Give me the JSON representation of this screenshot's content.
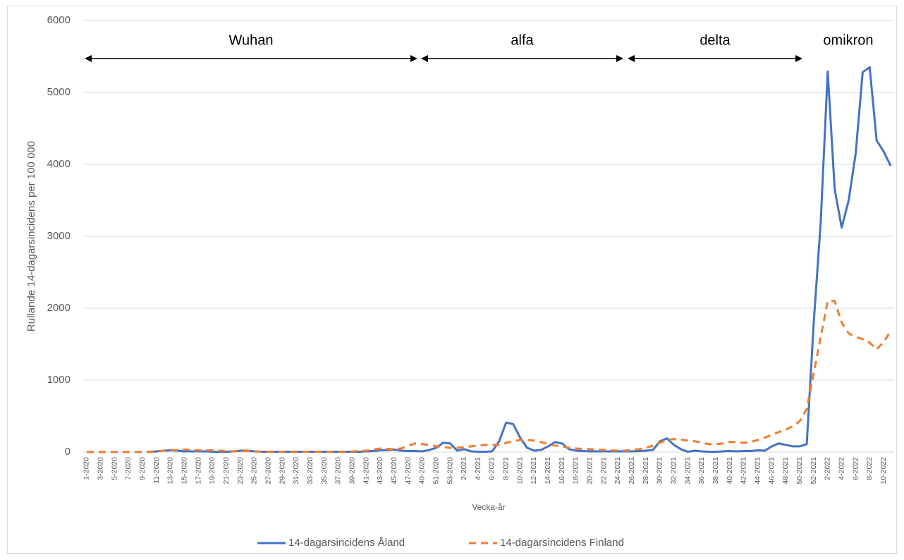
{
  "chart_data": {
    "type": "line",
    "y_label": "Rullande 14-dagarsincidens per 100 000",
    "x_label": "Vecka-år",
    "annotations": [
      "Wuhan",
      "alfa",
      "delta",
      "omikron"
    ],
    "ylim": [
      0,
      6000
    ],
    "yticks": [
      0,
      1000,
      2000,
      3000,
      4000,
      5000,
      6000
    ],
    "grid": true,
    "legend": "bottom",
    "categories": [
      "1-2020",
      null,
      "3-2020",
      null,
      "5-2020",
      null,
      "7-2020",
      null,
      "9-2020",
      null,
      "11-2020",
      null,
      "13-2020",
      null,
      "15-2020",
      null,
      "17-2020",
      null,
      "19-2020",
      null,
      "21-2020",
      null,
      "23-2020",
      null,
      "25-2020",
      null,
      "27-2020",
      null,
      "29-2020",
      null,
      "31-2020",
      null,
      "33-2020",
      null,
      "35-2020",
      null,
      "37-2020",
      null,
      "39-2020",
      null,
      "41-2020",
      null,
      "43-2020",
      null,
      "45-2020",
      null,
      "47-2020",
      null,
      "49-2020",
      null,
      "51-2020",
      null,
      "53-2020",
      null,
      "2-2021",
      null,
      "4-2021",
      null,
      "6-2021",
      null,
      "8-2021",
      null,
      "10-2021",
      null,
      "12-2021",
      null,
      "14-2021",
      null,
      "16-2021",
      null,
      "18-2021",
      null,
      "20-2021",
      null,
      "22-2021",
      null,
      "24-2021",
      null,
      "26-2021",
      null,
      "28-2021",
      null,
      "30-2021",
      null,
      "32-2021",
      null,
      "34-2021",
      null,
      "36-2021",
      null,
      "38-2021",
      null,
      "40-2021",
      null,
      "42-2021",
      null,
      "44-2021",
      null,
      "46-2021",
      null,
      "48-2021",
      null,
      "50-2021",
      null,
      "52-2021",
      null,
      "2-2022",
      null,
      "4-2022",
      null,
      "6-2022",
      null,
      "8-2022",
      null,
      "10-2022",
      null
    ],
    "series": [
      {
        "name": "14-dagarsincidens Åland",
        "color": "#4472c4",
        "line_style": "solid",
        "values": [
          null,
          null,
          null,
          null,
          null,
          null,
          null,
          null,
          null,
          5,
          10,
          20,
          25,
          20,
          10,
          10,
          10,
          10,
          5,
          5,
          5,
          10,
          20,
          20,
          10,
          5,
          5,
          5,
          5,
          5,
          5,
          5,
          5,
          5,
          5,
          5,
          5,
          5,
          5,
          5,
          10,
          15,
          25,
          30,
          35,
          20,
          15,
          15,
          10,
          30,
          60,
          130,
          120,
          20,
          40,
          10,
          5,
          5,
          10,
          150,
          410,
          390,
          200,
          60,
          20,
          30,
          80,
          140,
          120,
          40,
          20,
          15,
          10,
          10,
          10,
          10,
          10,
          10,
          10,
          15,
          20,
          30,
          150,
          190,
          100,
          40,
          5,
          20,
          10,
          5,
          5,
          10,
          15,
          10,
          15,
          15,
          25,
          20,
          80,
          120,
          100,
          80,
          80,
          110,
          1800,
          3200,
          5290,
          3650,
          3120,
          3500,
          4150,
          5280,
          5350,
          4330,
          4180,
          3980
        ]
      },
      {
        "name": "14-dagarsincidens Finland",
        "color": "#ed7d31",
        "line_style": "dashed",
        "values": [
          0,
          0,
          0,
          0,
          0,
          0,
          0,
          0,
          0,
          5,
          10,
          20,
          30,
          30,
          35,
          30,
          25,
          25,
          25,
          20,
          15,
          10,
          15,
          15,
          10,
          5,
          5,
          5,
          5,
          5,
          5,
          5,
          5,
          5,
          5,
          5,
          5,
          5,
          10,
          15,
          20,
          35,
          50,
          45,
          40,
          50,
          90,
          120,
          110,
          100,
          80,
          70,
          60,
          60,
          70,
          80,
          90,
          100,
          100,
          100,
          130,
          150,
          170,
          170,
          160,
          140,
          110,
          90,
          80,
          60,
          50,
          45,
          40,
          35,
          30,
          25,
          20,
          20,
          30,
          40,
          60,
          90,
          130,
          170,
          180,
          175,
          160,
          150,
          130,
          110,
          110,
          120,
          140,
          140,
          130,
          140,
          170,
          200,
          240,
          280,
          310,
          360,
          430,
          600,
          1100,
          1600,
          2100,
          2100,
          1800,
          1650,
          1600,
          1570,
          1520,
          1430,
          1530,
          1680
        ]
      }
    ]
  }
}
